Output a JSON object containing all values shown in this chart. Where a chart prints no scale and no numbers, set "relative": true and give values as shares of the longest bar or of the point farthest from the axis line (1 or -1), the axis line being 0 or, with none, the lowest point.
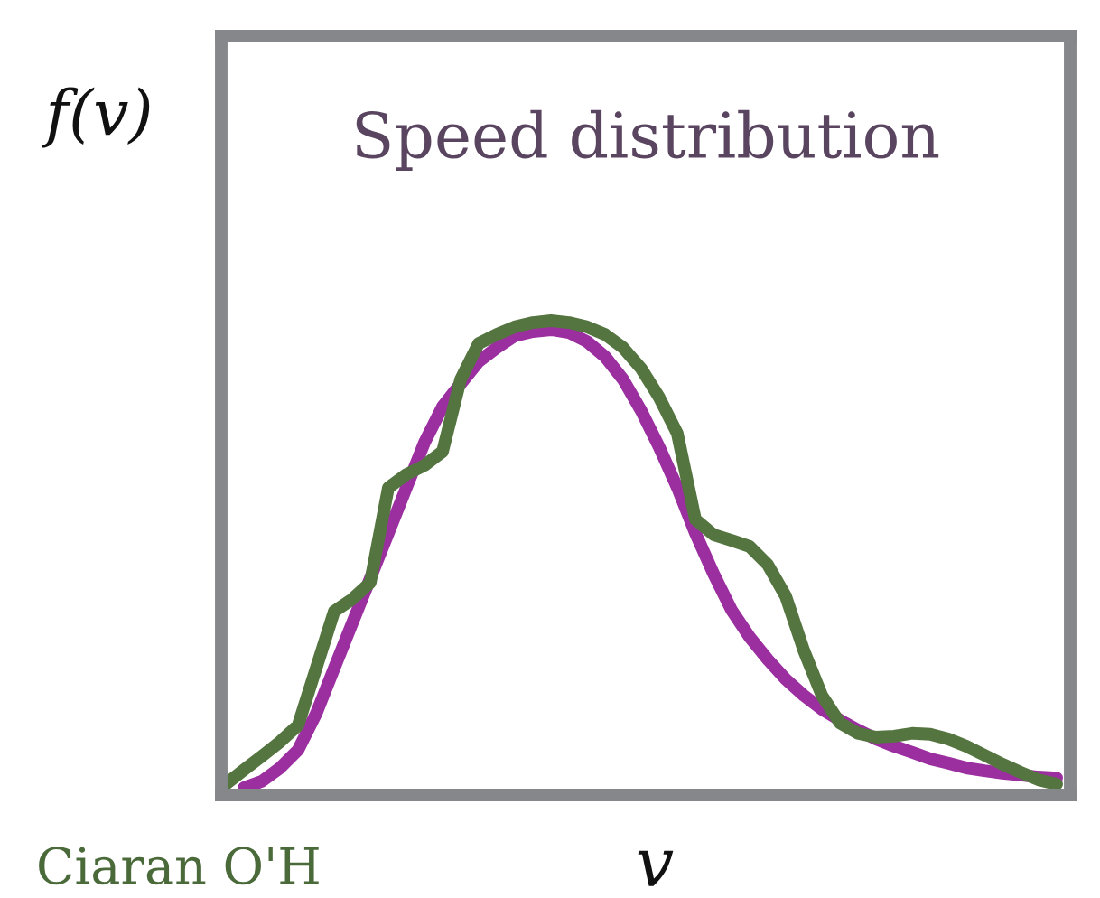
{
  "chart_data": {
    "type": "line",
    "relative": true,
    "title": "Speed distribution",
    "xlabel": "v",
    "ylabel": "f(v)",
    "annotations": [
      "Ciaran O'H"
    ],
    "categories": [
      null,
      null,
      null,
      null,
      null,
      null,
      null,
      null,
      null,
      null,
      null,
      null,
      null,
      null,
      null,
      null,
      null,
      null,
      null,
      null,
      null,
      null,
      null,
      null,
      null,
      null,
      null,
      null,
      null,
      null,
      null,
      null,
      null,
      null,
      null,
      null,
      null,
      null,
      null,
      null,
      null,
      null,
      null,
      null,
      null,
      null,
      null
    ],
    "series": [
      {
        "color": "#9b2fa0",
        "values": [
          null,
          0.015,
          0.029,
          0.057,
          0.095,
          0.171,
          0.267,
          0.362,
          0.457,
          0.552,
          0.648,
          0.743,
          0.819,
          0.867,
          0.914,
          0.943,
          0.968,
          0.977,
          0.981,
          0.975,
          0.956,
          0.924,
          0.876,
          0.81,
          0.733,
          0.648,
          0.552,
          0.467,
          0.39,
          0.333,
          0.286,
          0.244,
          0.21,
          0.181,
          0.158,
          0.137,
          0.118,
          0.103,
          0.09,
          0.076,
          0.067,
          0.057,
          0.051,
          0.046,
          0.042,
          0.038,
          0.036
        ]
      },
      {
        "color": "#557540",
        "values": [
          0.023,
          0.053,
          0.082,
          0.112,
          0.147,
          0.267,
          0.387,
          0.413,
          0.448,
          0.648,
          0.676,
          0.695,
          0.724,
          0.876,
          0.952,
          0.971,
          0.987,
          0.996,
          1,
          0.996,
          0.987,
          0.971,
          0.943,
          0.899,
          0.838,
          0.762,
          0.581,
          0.549,
          0.537,
          0.524,
          0.486,
          0.419,
          0.305,
          0.21,
          0.152,
          0.13,
          0.122,
          0.124,
          0.13,
          0.128,
          0.118,
          0.103,
          0.084,
          0.065,
          0.048,
          0.032,
          0.023
        ]
      }
    ],
    "grid": false,
    "legend": false,
    "line_style": "solid"
  }
}
